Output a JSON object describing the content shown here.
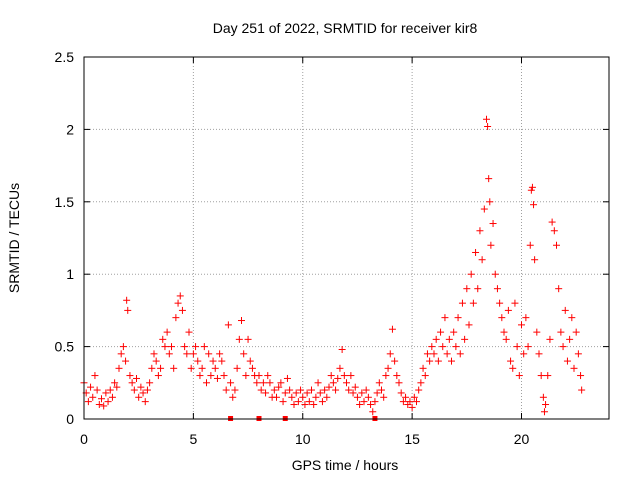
{
  "chart_data": {
    "type": "scatter",
    "title": "Day 251 of 2022, SRMTID for receiver kir8",
    "xlabel": "GPS time / hours",
    "ylabel": "SRMTID / TECUs",
    "xlim": [
      0,
      24
    ],
    "ylim": [
      0,
      2.5
    ],
    "xticks": [
      0,
      5,
      10,
      15,
      20
    ],
    "xtick_labels": [
      "0",
      "5",
      "10",
      "15",
      "20"
    ],
    "yticks": [
      0,
      0.5,
      1,
      1.5,
      2,
      2.5
    ],
    "ytick_labels": [
      "0",
      "0.5",
      "1",
      "1.5",
      "2",
      "2.5"
    ],
    "grid": true,
    "marker": "+",
    "color": "#ff0000",
    "series": [
      {
        "name": "kir8",
        "points": [
          [
            0.0,
            0.25
          ],
          [
            0.1,
            0.18
          ],
          [
            0.2,
            0.12
          ],
          [
            0.3,
            0.22
          ],
          [
            0.4,
            0.15
          ],
          [
            0.5,
            0.3
          ],
          [
            0.6,
            0.2
          ],
          [
            0.7,
            0.1
          ],
          [
            0.8,
            0.14
          ],
          [
            0.9,
            0.09
          ],
          [
            1.0,
            0.18
          ],
          [
            1.1,
            0.12
          ],
          [
            1.2,
            0.2
          ],
          [
            1.3,
            0.15
          ],
          [
            1.4,
            0.25
          ],
          [
            1.5,
            0.22
          ],
          [
            1.6,
            0.35
          ],
          [
            1.7,
            0.45
          ],
          [
            1.8,
            0.5
          ],
          [
            1.9,
            0.4
          ],
          [
            1.95,
            0.82
          ],
          [
            2.0,
            0.75
          ],
          [
            2.1,
            0.3
          ],
          [
            2.2,
            0.25
          ],
          [
            2.3,
            0.2
          ],
          [
            2.4,
            0.28
          ],
          [
            2.5,
            0.15
          ],
          [
            2.6,
            0.22
          ],
          [
            2.7,
            0.18
          ],
          [
            2.8,
            0.12
          ],
          [
            2.9,
            0.2
          ],
          [
            3.0,
            0.25
          ],
          [
            3.1,
            0.35
          ],
          [
            3.2,
            0.45
          ],
          [
            3.3,
            0.4
          ],
          [
            3.4,
            0.3
          ],
          [
            3.5,
            0.35
          ],
          [
            3.6,
            0.55
          ],
          [
            3.7,
            0.5
          ],
          [
            3.8,
            0.6
          ],
          [
            3.9,
            0.45
          ],
          [
            4.0,
            0.5
          ],
          [
            4.1,
            0.35
          ],
          [
            4.2,
            0.7
          ],
          [
            4.3,
            0.8
          ],
          [
            4.4,
            0.85
          ],
          [
            4.5,
            0.75
          ],
          [
            4.6,
            0.5
          ],
          [
            4.7,
            0.45
          ],
          [
            4.8,
            0.6
          ],
          [
            4.9,
            0.35
          ],
          [
            5.0,
            0.45
          ],
          [
            5.1,
            0.5
          ],
          [
            5.2,
            0.4
          ],
          [
            5.3,
            0.3
          ],
          [
            5.4,
            0.35
          ],
          [
            5.5,
            0.5
          ],
          [
            5.6,
            0.25
          ],
          [
            5.7,
            0.45
          ],
          [
            5.8,
            0.3
          ],
          [
            5.9,
            0.4
          ],
          [
            6.0,
            0.35
          ],
          [
            6.1,
            0.28
          ],
          [
            6.2,
            0.45
          ],
          [
            6.3,
            0.4
          ],
          [
            6.4,
            0.3
          ],
          [
            6.5,
            0.2
          ],
          [
            6.6,
            0.65
          ],
          [
            6.7,
            0.25
          ],
          [
            6.8,
            0.15
          ],
          [
            6.9,
            0.2
          ],
          [
            7.0,
            0.35
          ],
          [
            7.1,
            0.55
          ],
          [
            7.2,
            0.68
          ],
          [
            7.3,
            0.45
          ],
          [
            7.4,
            0.3
          ],
          [
            7.5,
            0.55
          ],
          [
            7.6,
            0.4
          ],
          [
            7.7,
            0.35
          ],
          [
            7.8,
            0.3
          ],
          [
            7.9,
            0.25
          ],
          [
            8.0,
            0.3
          ],
          [
            8.1,
            0.2
          ],
          [
            8.2,
            0.25
          ],
          [
            8.3,
            0.18
          ],
          [
            8.4,
            0.3
          ],
          [
            8.5,
            0.25
          ],
          [
            8.6,
            0.15
          ],
          [
            8.7,
            0.2
          ],
          [
            8.8,
            0.15
          ],
          [
            8.9,
            0.22
          ],
          [
            9.0,
            0.25
          ],
          [
            9.1,
            0.12
          ],
          [
            9.2,
            0.18
          ],
          [
            9.3,
            0.28
          ],
          [
            9.4,
            0.2
          ],
          [
            9.5,
            0.15
          ],
          [
            9.6,
            0.1
          ],
          [
            9.7,
            0.18
          ],
          [
            9.8,
            0.12
          ],
          [
            9.9,
            0.2
          ],
          [
            10.0,
            0.15
          ],
          [
            10.1,
            0.1
          ],
          [
            10.2,
            0.18
          ],
          [
            10.3,
            0.12
          ],
          [
            10.4,
            0.2
          ],
          [
            10.5,
            0.1
          ],
          [
            10.6,
            0.15
          ],
          [
            10.7,
            0.25
          ],
          [
            10.8,
            0.18
          ],
          [
            10.9,
            0.12
          ],
          [
            11.0,
            0.2
          ],
          [
            11.1,
            0.15
          ],
          [
            11.2,
            0.22
          ],
          [
            11.3,
            0.3
          ],
          [
            11.4,
            0.25
          ],
          [
            11.5,
            0.2
          ],
          [
            11.6,
            0.28
          ],
          [
            11.7,
            0.35
          ],
          [
            11.8,
            0.48
          ],
          [
            11.9,
            0.3
          ],
          [
            12.0,
            0.25
          ],
          [
            12.1,
            0.2
          ],
          [
            12.2,
            0.3
          ],
          [
            12.3,
            0.18
          ],
          [
            12.4,
            0.22
          ],
          [
            12.5,
            0.15
          ],
          [
            12.6,
            0.1
          ],
          [
            12.7,
            0.18
          ],
          [
            12.8,
            0.12
          ],
          [
            12.9,
            0.2
          ],
          [
            13.0,
            0.15
          ],
          [
            13.1,
            0.1
          ],
          [
            13.2,
            0.05
          ],
          [
            13.3,
            0.12
          ],
          [
            13.4,
            0.18
          ],
          [
            13.5,
            0.25
          ],
          [
            13.6,
            0.2
          ],
          [
            13.7,
            0.15
          ],
          [
            13.8,
            0.3
          ],
          [
            13.9,
            0.35
          ],
          [
            14.0,
            0.45
          ],
          [
            14.1,
            0.62
          ],
          [
            14.2,
            0.4
          ],
          [
            14.3,
            0.3
          ],
          [
            14.4,
            0.25
          ],
          [
            14.5,
            0.18
          ],
          [
            14.6,
            0.12
          ],
          [
            14.7,
            0.15
          ],
          [
            14.8,
            0.1
          ],
          [
            14.9,
            0.12
          ],
          [
            15.0,
            0.08
          ],
          [
            15.1,
            0.15
          ],
          [
            15.2,
            0.12
          ],
          [
            15.3,
            0.2
          ],
          [
            15.4,
            0.25
          ],
          [
            15.5,
            0.35
          ],
          [
            15.6,
            0.3
          ],
          [
            15.7,
            0.45
          ],
          [
            15.8,
            0.4
          ],
          [
            15.9,
            0.5
          ],
          [
            16.0,
            0.45
          ],
          [
            16.1,
            0.55
          ],
          [
            16.2,
            0.4
          ],
          [
            16.3,
            0.6
          ],
          [
            16.4,
            0.5
          ],
          [
            16.5,
            0.7
          ],
          [
            16.6,
            0.45
          ],
          [
            16.7,
            0.55
          ],
          [
            16.8,
            0.4
          ],
          [
            16.9,
            0.6
          ],
          [
            17.0,
            0.5
          ],
          [
            17.1,
            0.7
          ],
          [
            17.2,
            0.45
          ],
          [
            17.3,
            0.8
          ],
          [
            17.4,
            0.55
          ],
          [
            17.5,
            0.9
          ],
          [
            17.6,
            0.65
          ],
          [
            17.7,
            1.0
          ],
          [
            17.8,
            0.8
          ],
          [
            17.9,
            1.15
          ],
          [
            18.0,
            0.9
          ],
          [
            18.1,
            1.3
          ],
          [
            18.2,
            1.1
          ],
          [
            18.3,
            1.45
          ],
          [
            18.4,
            2.07
          ],
          [
            18.45,
            2.02
          ],
          [
            18.5,
            1.66
          ],
          [
            18.55,
            1.5
          ],
          [
            18.6,
            1.2
          ],
          [
            18.7,
            1.35
          ],
          [
            18.8,
            1.0
          ],
          [
            18.9,
            0.9
          ],
          [
            19.0,
            0.8
          ],
          [
            19.1,
            0.7
          ],
          [
            19.2,
            0.6
          ],
          [
            19.3,
            0.55
          ],
          [
            19.4,
            0.75
          ],
          [
            19.5,
            0.4
          ],
          [
            19.6,
            0.35
          ],
          [
            19.7,
            0.8
          ],
          [
            19.8,
            0.5
          ],
          [
            19.9,
            0.3
          ],
          [
            20.0,
            0.65
          ],
          [
            20.1,
            0.45
          ],
          [
            20.2,
            0.7
          ],
          [
            20.3,
            0.5
          ],
          [
            20.4,
            1.2
          ],
          [
            20.45,
            1.58
          ],
          [
            20.5,
            1.6
          ],
          [
            20.55,
            1.48
          ],
          [
            20.6,
            1.1
          ],
          [
            20.7,
            0.6
          ],
          [
            20.8,
            0.45
          ],
          [
            20.9,
            0.3
          ],
          [
            21.0,
            0.15
          ],
          [
            21.05,
            0.05
          ],
          [
            21.1,
            0.1
          ],
          [
            21.2,
            0.3
          ],
          [
            21.3,
            0.55
          ],
          [
            21.4,
            1.36
          ],
          [
            21.5,
            1.3
          ],
          [
            21.6,
            1.2
          ],
          [
            21.7,
            0.9
          ],
          [
            21.8,
            0.6
          ],
          [
            21.9,
            0.5
          ],
          [
            22.0,
            0.75
          ],
          [
            22.1,
            0.4
          ],
          [
            22.2,
            0.55
          ],
          [
            22.3,
            0.7
          ],
          [
            22.4,
            0.35
          ],
          [
            22.5,
            0.6
          ],
          [
            22.6,
            0.45
          ],
          [
            22.7,
            0.3
          ],
          [
            22.75,
            0.2
          ]
        ]
      }
    ],
    "baseline_markers_x": [
      6.7,
      8.0,
      9.2,
      13.3
    ]
  }
}
